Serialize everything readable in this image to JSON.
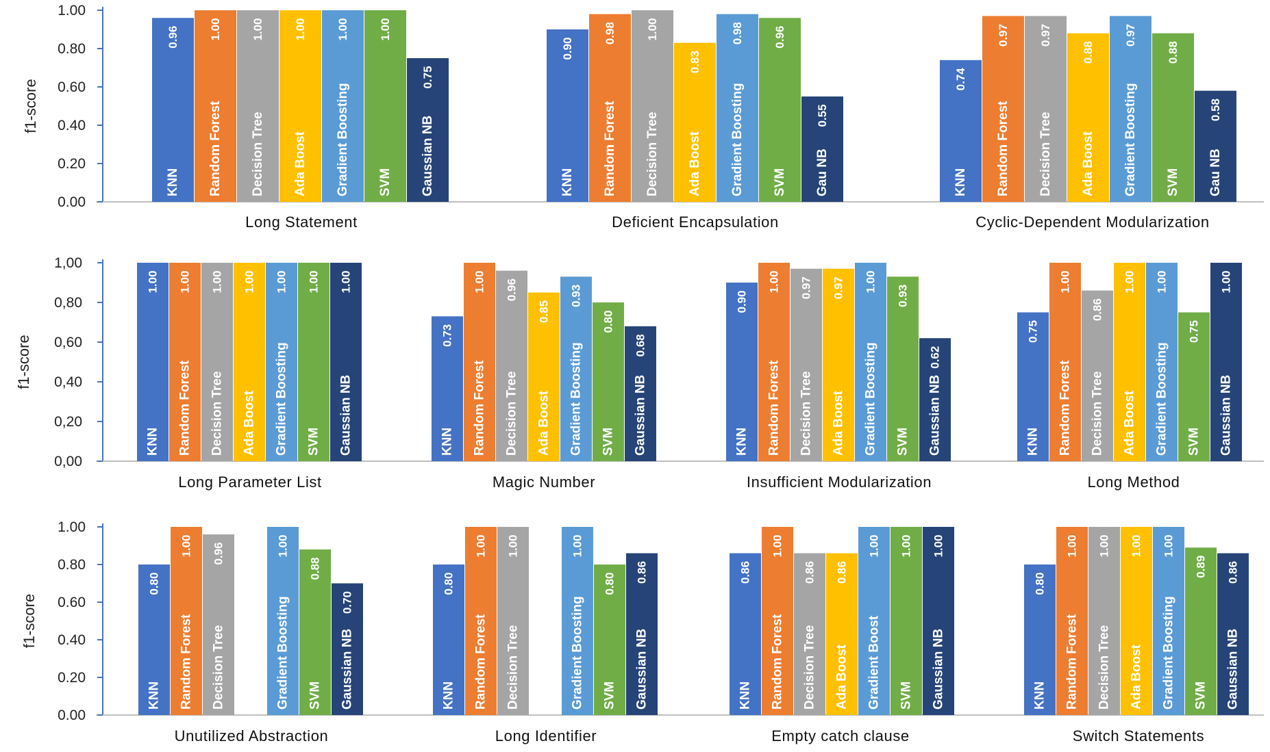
{
  "chart_data": [
    {
      "type": "bar",
      "ylabel": "f1-score",
      "yticks": [
        "0.00",
        "0.20",
        "0.40",
        "0.60",
        "0.80",
        "1.00"
      ],
      "ylim": [
        0,
        1
      ],
      "groups": [
        {
          "category": "Long Statement",
          "bars": [
            {
              "series": "KNN",
              "value": 0.96,
              "label": "0.96"
            },
            {
              "series": "Random Forest",
              "value": 1.0,
              "label": "1.00"
            },
            {
              "series": "Decision Tree",
              "value": 1.0,
              "label": "1.00"
            },
            {
              "series": "Ada Boost",
              "value": 1.0,
              "label": "1.00"
            },
            {
              "series": "Gradient Boosting",
              "value": 1.0,
              "label": "1.00"
            },
            {
              "series": "SVM",
              "value": 1.0,
              "label": "1.00"
            },
            {
              "series": "Gaussian NB",
              "value": 0.75,
              "label": "0.75"
            }
          ]
        },
        {
          "category": "Deficient Encapsulation",
          "bars": [
            {
              "series": "KNN",
              "value": 0.9,
              "label": "0.90"
            },
            {
              "series": "Random Forest",
              "value": 0.98,
              "label": "0.98"
            },
            {
              "series": "Decision Tree",
              "value": 1.0,
              "label": "1.00"
            },
            {
              "series": "Ada Boost",
              "value": 0.83,
              "label": "0.83"
            },
            {
              "series": "Gradient Boosting",
              "value": 0.98,
              "label": "0.98"
            },
            {
              "series": "SVM",
              "value": 0.96,
              "label": "0.96"
            },
            {
              "series": "Gau NB",
              "value": 0.55,
              "label": "0.55"
            }
          ]
        },
        {
          "category": "Cyclic-Dependent Modularization",
          "bars": [
            {
              "series": "KNN",
              "value": 0.74,
              "label": "0.74"
            },
            {
              "series": "Random Forest",
              "value": 0.97,
              "label": "0.97"
            },
            {
              "series": "Decision Tree",
              "value": 0.97,
              "label": "0.97"
            },
            {
              "series": "Ada Boost",
              "value": 0.88,
              "label": "0.88"
            },
            {
              "series": "Gradient Boosting",
              "value": 0.97,
              "label": "0.97"
            },
            {
              "series": "SVM",
              "value": 0.88,
              "label": "0.88"
            },
            {
              "series": "Gau NB",
              "value": 0.58,
              "label": "0.58"
            }
          ]
        }
      ]
    },
    {
      "type": "bar",
      "ylabel": "f1-score",
      "yticks": [
        "0,00",
        "0,20",
        "0,40",
        "0,60",
        "0,80",
        "1,00"
      ],
      "ylim": [
        0,
        1
      ],
      "groups": [
        {
          "category": "Long Parameter List",
          "bars": [
            {
              "series": "KNN",
              "value": 1.0,
              "label": "1.00"
            },
            {
              "series": "Random Forest",
              "value": 1.0,
              "label": "1.00"
            },
            {
              "series": "Decision Tree",
              "value": 1.0,
              "label": "1.00"
            },
            {
              "series": "Ada Boost",
              "value": 1.0,
              "label": "1.00"
            },
            {
              "series": "Gradient Boosting",
              "value": 1.0,
              "label": "1.00"
            },
            {
              "series": "SVM",
              "value": 1.0,
              "label": "1.00"
            },
            {
              "series": "Gaussian NB",
              "value": 1.0,
              "label": "1.00"
            }
          ]
        },
        {
          "category": "Magic Number",
          "bars": [
            {
              "series": "KNN",
              "value": 0.73,
              "label": "0.73"
            },
            {
              "series": "Random Forest",
              "value": 1.0,
              "label": "1.00"
            },
            {
              "series": "Decision Tree",
              "value": 0.96,
              "label": "0.96"
            },
            {
              "series": "Ada Boost",
              "value": 0.85,
              "label": "0.85"
            },
            {
              "series": "Gradient Boosting",
              "value": 0.93,
              "label": "0.93"
            },
            {
              "series": "SVM",
              "value": 0.8,
              "label": "0.80"
            },
            {
              "series": "Gaussian NB",
              "value": 0.68,
              "label": "0.68"
            }
          ]
        },
        {
          "category": "Insufficient Modularization",
          "bars": [
            {
              "series": "KNN",
              "value": 0.9,
              "label": "0.90"
            },
            {
              "series": "Random Forest",
              "value": 1.0,
              "label": "1.00"
            },
            {
              "series": "Decision Tree",
              "value": 0.97,
              "label": "0.97"
            },
            {
              "series": "Ada Boost",
              "value": 0.97,
              "label": "0.97"
            },
            {
              "series": "Gradient Boosting",
              "value": 1.0,
              "label": "1.00"
            },
            {
              "series": "SVM",
              "value": 0.93,
              "label": "0.93"
            },
            {
              "series": "Gaussian NB",
              "value": 0.62,
              "label": "0.62"
            }
          ]
        },
        {
          "category": "Long Method",
          "bars": [
            {
              "series": "KNN",
              "value": 0.75,
              "label": "0.75"
            },
            {
              "series": "Random Forest",
              "value": 1.0,
              "label": "1.00"
            },
            {
              "series": "Decision Tree",
              "value": 0.86,
              "label": "0.86"
            },
            {
              "series": "Ada Boost",
              "value": 1.0,
              "label": "1.00"
            },
            {
              "series": "Gradient Boosting",
              "value": 1.0,
              "label": "1.00"
            },
            {
              "series": "SVM",
              "value": 0.75,
              "label": "0.75"
            },
            {
              "series": "Gaussian NB",
              "value": 1.0,
              "label": "1.00"
            }
          ]
        }
      ]
    },
    {
      "type": "bar",
      "ylabel": "f1-score",
      "yticks": [
        "0.00",
        "0.20",
        "0.40",
        "0.60",
        "0.80",
        "1.00"
      ],
      "ylim": [
        0,
        1
      ],
      "groups": [
        {
          "category": "Unutilized Abstraction",
          "bars": [
            {
              "series": "KNN",
              "value": 0.8,
              "label": "0.80"
            },
            {
              "series": "Random Forest",
              "value": 1.0,
              "label": "1.00"
            },
            {
              "series": "Decision Tree",
              "value": 0.96,
              "label": "0.96"
            },
            {
              "series": null,
              "value": 0
            },
            {
              "series": "Gradient Boosting",
              "value": 1.0,
              "label": "1.00"
            },
            {
              "series": "SVM",
              "value": 0.88,
              "label": "0.88"
            },
            {
              "series": "Gaussian NB",
              "value": 0.7,
              "label": "0.70"
            }
          ]
        },
        {
          "category": "Long Identifier",
          "bars": [
            {
              "series": "KNN",
              "value": 0.8,
              "label": "0.80"
            },
            {
              "series": "Random Forest",
              "value": 1.0,
              "label": "1.00"
            },
            {
              "series": "Decision Tree",
              "value": 1.0,
              "label": "1.00"
            },
            {
              "series": null,
              "value": 0
            },
            {
              "series": "Gradient Boosting",
              "value": 1.0,
              "label": "1.00"
            },
            {
              "series": "SVM",
              "value": 0.8,
              "label": "0.80"
            },
            {
              "series": "Gaussian NB",
              "value": 0.86,
              "label": "0.86"
            }
          ]
        },
        {
          "category": "Empty catch clause",
          "bars": [
            {
              "series": "KNN",
              "value": 0.86,
              "label": "0.86"
            },
            {
              "series": "Random Forest",
              "value": 1.0,
              "label": "1.00"
            },
            {
              "series": "Decision Tree",
              "value": 0.86,
              "label": "0.86"
            },
            {
              "series": "Ada Boost",
              "value": 0.86,
              "label": "0.86"
            },
            {
              "series": "Gradient Boost",
              "value": 1.0,
              "label": "1.00"
            },
            {
              "series": "SVM",
              "value": 1.0,
              "label": "1.00"
            },
            {
              "series": "Gaussian NB",
              "value": 1.0,
              "label": "1.00"
            }
          ]
        },
        {
          "category": "Switch Statements",
          "bars": [
            {
              "series": "KNN",
              "value": 0.8,
              "label": "0.80"
            },
            {
              "series": "Random Forest",
              "value": 1.0,
              "label": "1.00"
            },
            {
              "series": "Decision Tree",
              "value": 1.0,
              "label": "1.00"
            },
            {
              "series": "Ada Boost",
              "value": 1.0,
              "label": "1.00"
            },
            {
              "series": "Gradient Boosting",
              "value": 1.0,
              "label": "1.00"
            },
            {
              "series": "SVM",
              "value": 0.89,
              "label": "0.89"
            },
            {
              "series": "Gaussian NB",
              "value": 0.86,
              "label": "0.86"
            }
          ]
        }
      ]
    }
  ],
  "colors": {
    "knn": "#4472C4",
    "random_forest": "#ED7D31",
    "decision_tree": "#A5A5A5",
    "ada_boost": "#FFC000",
    "gradient_boosting": "#5B9BD5",
    "svm": "#70AD47",
    "gaussian_nb": "#264478",
    "axis": "#4472C4"
  }
}
